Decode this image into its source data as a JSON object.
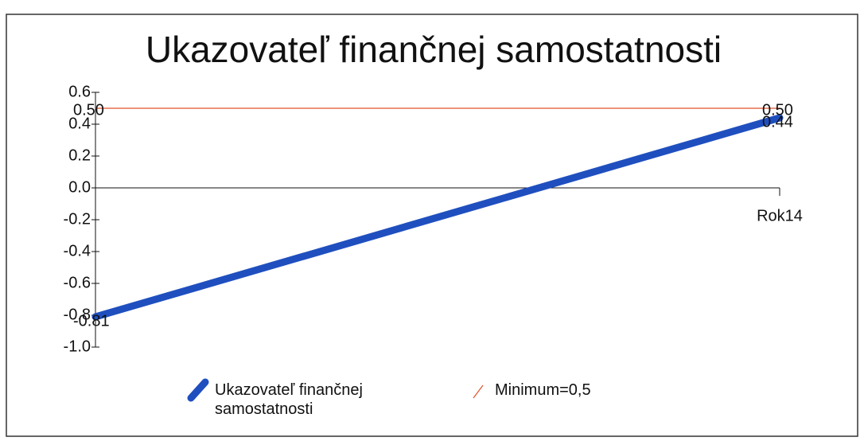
{
  "chart_data": {
    "type": "line",
    "title": "Ukazovateľ finančnej samostatnosti",
    "categories": [
      null,
      "Rok14"
    ],
    "series": [
      {
        "name": "Ukazovateľ finančnej samostatnosti",
        "color": "#1f4fbf",
        "values": [
          -0.81,
          0.44
        ],
        "value_labels": [
          "-0.81",
          "0.44"
        ]
      },
      {
        "name": "Minimum=0,5",
        "color": "#e0502a",
        "values": [
          0.5,
          0.5
        ],
        "value_labels": [
          "0.50",
          "0.50"
        ]
      }
    ],
    "ylim": [
      -1,
      0.6
    ],
    "yticks": [
      {
        "value": -1,
        "label": "-1.0"
      },
      -0.8,
      -0.6,
      -0.4,
      -0.2,
      {
        "value": 0,
        "label": "0.0"
      },
      0.2,
      0.4,
      0.6
    ],
    "legend": "bottom"
  }
}
